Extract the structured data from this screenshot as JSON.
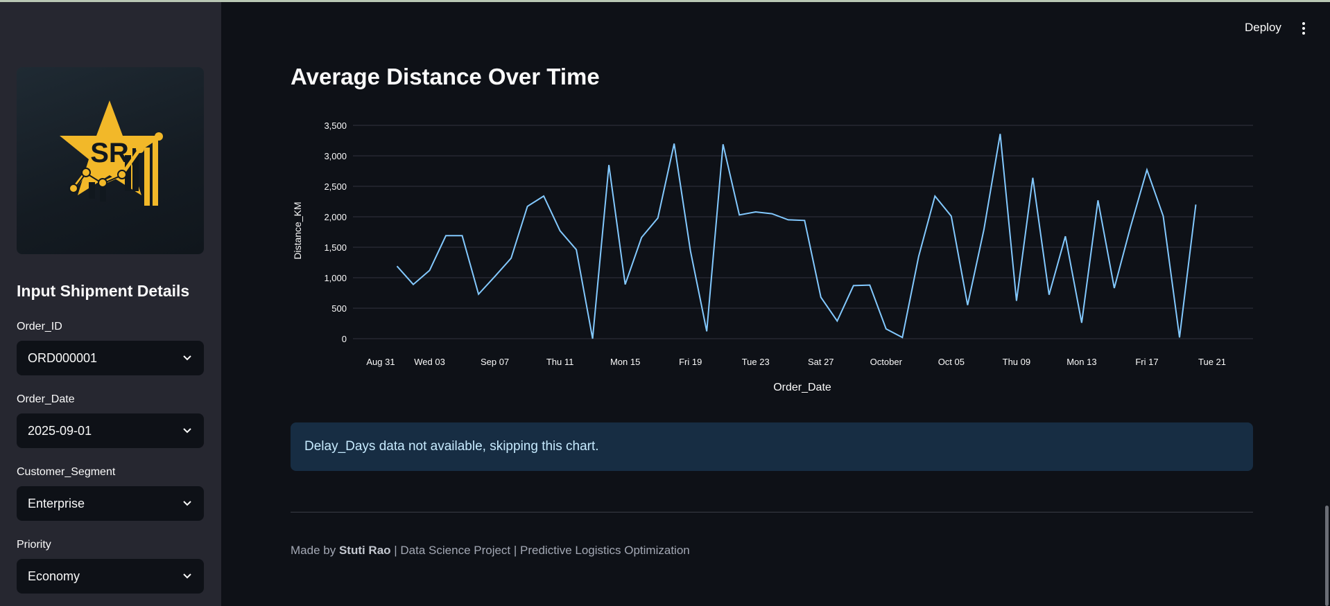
{
  "sidebar": {
    "logo_text": "SR",
    "heading": "Input Shipment Details",
    "fields": [
      {
        "label": "Order_ID",
        "value": "ORD000001"
      },
      {
        "label": "Order_Date",
        "value": "2025-09-01"
      },
      {
        "label": "Customer_Segment",
        "value": "Enterprise"
      },
      {
        "label": "Priority",
        "value": "Economy"
      }
    ]
  },
  "header": {
    "deploy_label": "Deploy",
    "menu_icon": "kebab-menu-icon"
  },
  "main": {
    "title": "Average Distance Over Time",
    "info_message": "Delay_Days data not available, skipping this chart.",
    "footer": {
      "prefix": "Made by ",
      "author": "Stuti Rao",
      "suffix": " | Data Science Project | Predictive Logistics Optimization"
    }
  },
  "colors": {
    "background": "#0e1117",
    "sidebar": "#262730",
    "line": "#83c9ff",
    "info_bg": "#172d43",
    "info_text": "#c7ebff",
    "logo_gold": "#f2b829"
  },
  "chart_data": {
    "type": "line",
    "xlabel": "Order_Date",
    "ylabel": "Distance_KM",
    "ylim": [
      0,
      3500
    ],
    "yticks": [
      0,
      500,
      1000,
      1500,
      2000,
      2500,
      3000,
      3500
    ],
    "ytick_labels": [
      "0",
      "500",
      "1,000",
      "1,500",
      "2,000",
      "2,500",
      "3,000",
      "3,500"
    ],
    "xticks": [
      {
        "date": "2025-08-31",
        "label": "Aug 31"
      },
      {
        "date": "2025-09-03",
        "label": "Wed 03"
      },
      {
        "date": "2025-09-07",
        "label": "Sep 07"
      },
      {
        "date": "2025-09-11",
        "label": "Thu 11"
      },
      {
        "date": "2025-09-15",
        "label": "Mon 15"
      },
      {
        "date": "2025-09-19",
        "label": "Fri 19"
      },
      {
        "date": "2025-09-23",
        "label": "Tue 23"
      },
      {
        "date": "2025-09-27",
        "label": "Sat 27"
      },
      {
        "date": "2025-10-01",
        "label": "October"
      },
      {
        "date": "2025-10-05",
        "label": "Oct 05"
      },
      {
        "date": "2025-10-09",
        "label": "Thu 09"
      },
      {
        "date": "2025-10-13",
        "label": "Mon 13"
      },
      {
        "date": "2025-10-17",
        "label": "Fri 17"
      },
      {
        "date": "2025-10-21",
        "label": "Tue 21"
      }
    ],
    "grid": true,
    "x": [
      "2025-09-01",
      "2025-09-02",
      "2025-09-03",
      "2025-09-04",
      "2025-09-05",
      "2025-09-06",
      "2025-09-07",
      "2025-09-08",
      "2025-09-09",
      "2025-09-10",
      "2025-09-11",
      "2025-09-12",
      "2025-09-13",
      "2025-09-14",
      "2025-09-15",
      "2025-09-16",
      "2025-09-17",
      "2025-09-18",
      "2025-09-19",
      "2025-09-20",
      "2025-09-21",
      "2025-09-22",
      "2025-09-23",
      "2025-09-24",
      "2025-09-25",
      "2025-09-26",
      "2025-09-27",
      "2025-09-28",
      "2025-09-29",
      "2025-09-30",
      "2025-10-01",
      "2025-10-02",
      "2025-10-03",
      "2025-10-04",
      "2025-10-05",
      "2025-10-06",
      "2025-10-07",
      "2025-10-08",
      "2025-10-09",
      "2025-10-10",
      "2025-10-11",
      "2025-10-12",
      "2025-10-13",
      "2025-10-14",
      "2025-10-15",
      "2025-10-16",
      "2025-10-17",
      "2025-10-18",
      "2025-10-19",
      "2025-10-20"
    ],
    "series": [
      {
        "values": [
          1190,
          890,
          1120,
          1690,
          1690,
          730,
          1020,
          1320,
          2170,
          2340,
          1770,
          1460,
          0,
          2850,
          890,
          1660,
          1980,
          3200,
          1440,
          120,
          3190,
          2030,
          2080,
          2050,
          1950,
          1940,
          680,
          290,
          870,
          880,
          160,
          20,
          1350,
          2340,
          2010,
          550,
          1790,
          3360,
          620,
          2640,
          720,
          1680,
          260,
          2270,
          830,
          1840,
          2770,
          2010,
          20,
          2200
        ]
      }
    ]
  }
}
